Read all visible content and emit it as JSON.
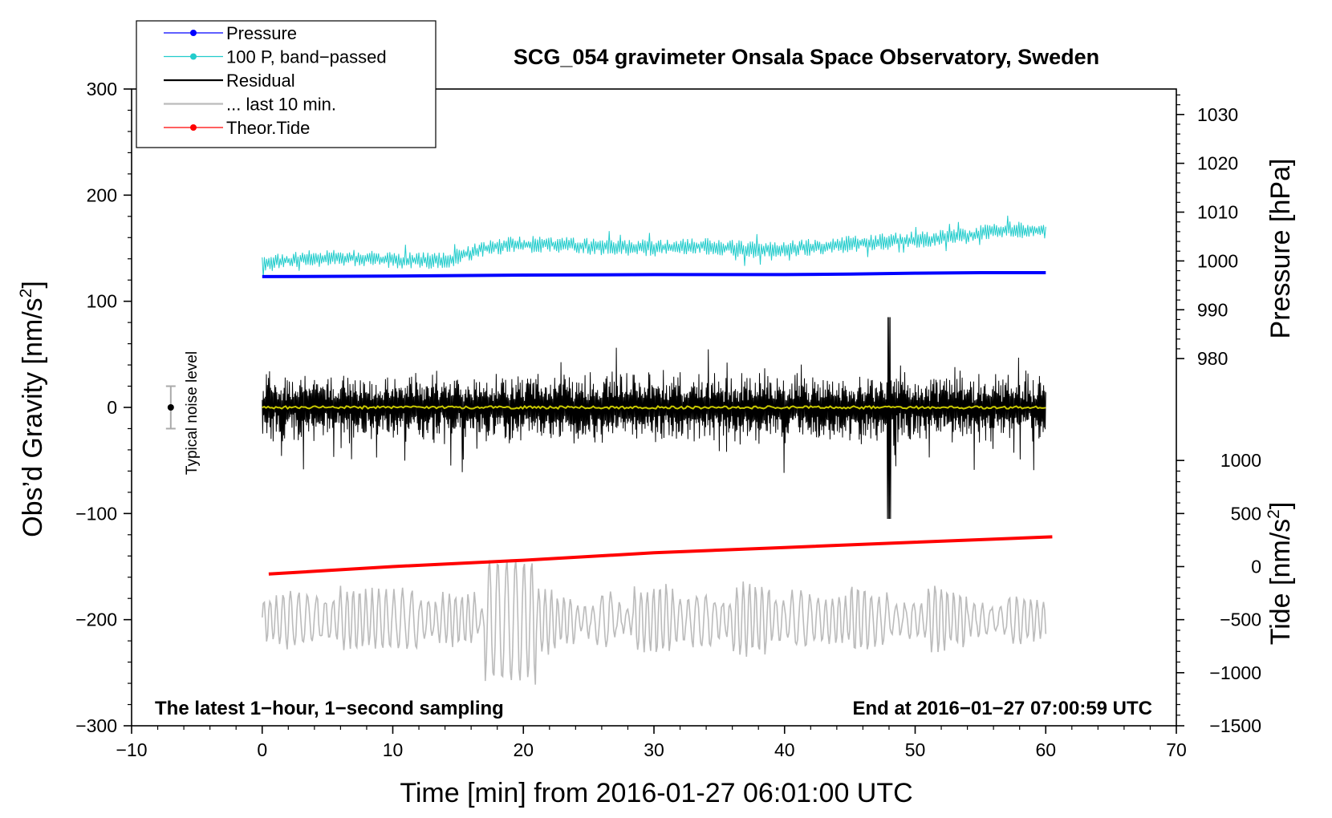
{
  "chart_data": {
    "type": "line",
    "title": "SCG_054 gravimeter Onsala Space Observatory, Sweden",
    "xlabel": "Time [min] from 2016-01-27 06:01:00 UTC",
    "ylabel": "Obs'd Gravity [nm/s²]",
    "xlim": [
      -10,
      70
    ],
    "ylim": [
      -300,
      300
    ],
    "x_ticks": [
      -10,
      0,
      10,
      20,
      30,
      40,
      50,
      60,
      70
    ],
    "x_tick_labels": [
      "−10",
      "0",
      "10",
      "20",
      "30",
      "40",
      "50",
      "60",
      "70"
    ],
    "y_ticks": [
      -300,
      -200,
      -100,
      0,
      100,
      200,
      300
    ],
    "y_tick_labels": [
      "−300",
      "−200",
      "−100",
      "0",
      "100",
      "200",
      "300"
    ],
    "pressure_axis": {
      "label": "Pressure [hPa]",
      "ticks": [
        980,
        990,
        1000,
        1010,
        1020,
        1030
      ],
      "tick_labels": [
        "980",
        "990",
        "1000",
        "1010",
        "1020",
        "1030"
      ],
      "gravity_at_1000_hPa": 138,
      "gravity_per_hPa": 4.6
    },
    "tide_axis": {
      "label": "Tide [nm/s²]",
      "ticks": [
        -1500,
        -1000,
        -500,
        0,
        500,
        1000
      ],
      "tick_labels": [
        "−1500",
        "−1000",
        "−500",
        "0",
        "500",
        "1000"
      ],
      "gravity_at_0": -150,
      "gravity_per_unit": 0.1
    },
    "legend": {
      "placement": "top-left",
      "entries": [
        {
          "label": "Pressure",
          "color": "#0000ff",
          "marker": true
        },
        {
          "label": "100 P, band−passed",
          "color": "#22cccc",
          "marker": true
        },
        {
          "label": "Residual",
          "color": "#000000",
          "marker": false
        },
        {
          "label": "... last 10 min.",
          "color": "#bbbbbb",
          "marker": false
        },
        {
          "label": "Theor.Tide",
          "color": "#ff0000",
          "marker": true
        }
      ]
    },
    "series": [
      {
        "name": "Pressure",
        "axis": "pressure",
        "color": "#0000ff",
        "x": [
          0,
          10,
          20,
          30,
          40,
          45,
          50,
          55,
          60
        ],
        "values": [
          996.8,
          996.9,
          997.1,
          997.2,
          997.2,
          997.3,
          997.5,
          997.6,
          997.6
        ]
      },
      {
        "name": "100 P, band-passed",
        "axis": "gravity",
        "color": "#22cccc",
        "x": [
          0,
          3,
          6,
          10,
          14,
          17,
          19,
          22,
          26,
          30,
          34,
          38,
          42,
          46,
          50,
          54,
          57,
          60
        ],
        "values": [
          135,
          140,
          141,
          139,
          138,
          150,
          153,
          154,
          151,
          150,
          152,
          148,
          151,
          155,
          158,
          162,
          168,
          166
        ]
      },
      {
        "name": "Residual",
        "axis": "gravity",
        "color": "#000000",
        "x": [
          0,
          60
        ],
        "envelope": [
          -45,
          45
        ],
        "peak_max": 85,
        "peak_min": -105
      },
      {
        "name": "Residual smoothed",
        "axis": "gravity",
        "color": "#c8c800",
        "x": [
          0,
          60
        ],
        "values": [
          0,
          0
        ]
      },
      {
        "name": "... last 10 min.",
        "axis": "gravity",
        "color": "#bbbbbb",
        "x": [
          0,
          60
        ],
        "center": -200,
        "envelope": [
          -262,
          -113
        ]
      },
      {
        "name": "Theor.Tide",
        "axis": "tide",
        "color": "#ff0000",
        "x": [
          0.5,
          10,
          20,
          30,
          40,
          50,
          60.5
        ],
        "values": [
          -70,
          0,
          60,
          130,
          180,
          230,
          280
        ]
      }
    ],
    "annotations": {
      "noise_label": "Typical noise level",
      "noise_value": 0,
      "noise_range": [
        -20,
        20
      ],
      "footer_left": "The latest 1−hour, 1−second sampling",
      "footer_right": "End at 2016−01−27 07:00:59 UTC"
    },
    "grid": false
  }
}
